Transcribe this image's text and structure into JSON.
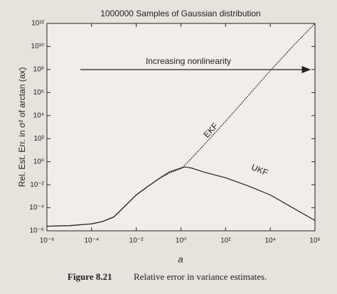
{
  "chart_data": {
    "type": "line",
    "title": "1000000 Samples of Gaussian distribution",
    "x_label": "a",
    "y_label": "Rel. Est. Err. in σ² of arctan (ax)",
    "log_x": true,
    "log_y": true,
    "x": [
      1e-06,
      1e-05,
      0.0001,
      0.0003,
      0.001,
      0.003,
      0.01,
      0.03,
      0.1,
      0.3,
      1,
      1.5,
      3,
      10,
      100,
      1000,
      10000,
      100000,
      1000000
    ],
    "series": [
      {
        "name": "EKF",
        "color": "#222222",
        "dash": "dotted",
        "values": [
          2.5e-06,
          2.8e-06,
          4e-06,
          6.3e-06,
          1.6e-05,
          0.00013,
          0.0013,
          0.0063,
          0.032,
          0.1,
          0.25,
          0.5,
          2,
          25,
          3200,
          500000,
          80000000,
          10000000000,
          1000000000000
        ]
      },
      {
        "name": "UKF",
        "color": "#222222",
        "dash": "solid",
        "values": [
          2.5e-06,
          2.8e-06,
          4e-06,
          6.3e-06,
          1.6e-05,
          0.00013,
          0.0013,
          0.0063,
          0.032,
          0.13,
          0.28,
          0.35,
          0.28,
          0.13,
          0.04,
          0.008,
          0.0013,
          0.0001,
          8e-06
        ]
      }
    ],
    "xlim": [
      1e-06,
      1000000
    ],
    "ylim": [
      1e-06,
      1000000000000
    ],
    "xticks": [
      {
        "value": 1e-06,
        "label": "10⁻⁶"
      },
      {
        "value": 0.0001,
        "label": "10⁻⁴"
      },
      {
        "value": 0.01,
        "label": "10⁻²"
      },
      {
        "value": 1,
        "label": "10⁰"
      },
      {
        "value": 100,
        "label": "10²"
      },
      {
        "value": 10000,
        "label": "10⁴"
      },
      {
        "value": 1000000,
        "label": "10⁶"
      }
    ],
    "yticks": [
      {
        "value": 1e-06,
        "label": "10⁻⁶"
      },
      {
        "value": 0.0001,
        "label": "10⁻⁴"
      },
      {
        "value": 0.01,
        "label": "10⁻²"
      },
      {
        "value": 1,
        "label": "10⁰"
      },
      {
        "value": 100,
        "label": "10²"
      },
      {
        "value": 10000,
        "label": "10⁴"
      },
      {
        "value": 1000000,
        "label": "10⁶"
      },
      {
        "value": 100000000,
        "label": "10⁸"
      },
      {
        "value": 10000000000,
        "label": "10¹⁰"
      },
      {
        "value": 1000000000000,
        "label": "10¹²"
      }
    ],
    "grid": false,
    "annotation": "Increasing nonlinearity",
    "caption_number": "Figure 8.21",
    "caption_text": "Relative error in variance estimates."
  }
}
